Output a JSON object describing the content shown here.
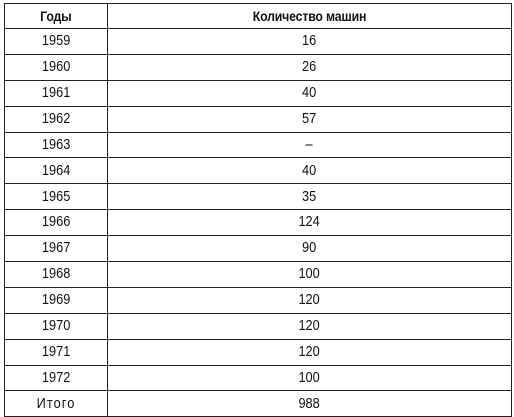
{
  "table": {
    "headers": [
      "Годы",
      "Количество машин"
    ],
    "rows": [
      [
        "1959",
        "16"
      ],
      [
        "1960",
        "26"
      ],
      [
        "1961",
        "40"
      ],
      [
        "1962",
        "57"
      ],
      [
        "1963",
        "–"
      ],
      [
        "1964",
        "40"
      ],
      [
        "1965",
        "35"
      ],
      [
        "1966",
        "124"
      ],
      [
        "1967",
        "90"
      ],
      [
        "1968",
        "100"
      ],
      [
        "1969",
        "120"
      ],
      [
        "1970",
        "120"
      ],
      [
        "1971",
        "120"
      ],
      [
        "1972",
        "100"
      ]
    ],
    "total": [
      "Итого",
      "988"
    ]
  }
}
